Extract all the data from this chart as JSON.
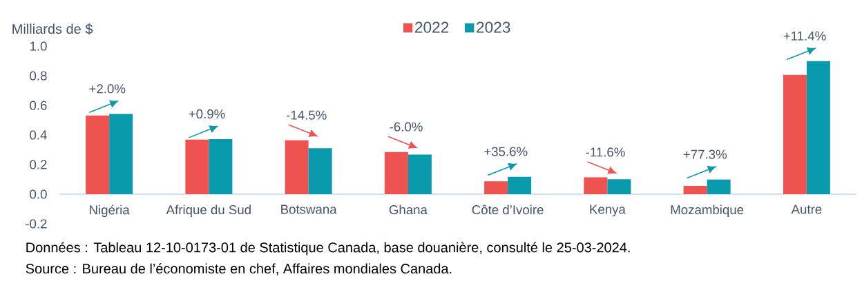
{
  "chart_data": {
    "type": "bar",
    "ylabel": "Milliards de $",
    "categories": [
      "Nigéria",
      "Afrique du Sud",
      "Botswana",
      "Ghana",
      "Côte d’Ivoire",
      "Kenya",
      "Mozambique",
      "Autre"
    ],
    "series": [
      {
        "name": "2022",
        "color": "#ef5350",
        "values": [
          0.531,
          0.369,
          0.364,
          0.285,
          0.087,
          0.114,
          0.056,
          0.806
        ]
      },
      {
        "name": "2023",
        "color": "#0a9aad",
        "values": [
          0.542,
          0.372,
          0.311,
          0.268,
          0.118,
          0.101,
          0.099,
          0.899
        ]
      }
    ],
    "ylim": [
      -0.2,
      1.0
    ],
    "yticks": [
      {
        "value": -0.2,
        "label": "-0.2"
      },
      {
        "value": 0,
        "label": "0.0"
      },
      {
        "value": 0.2,
        "label": "0.2"
      },
      {
        "value": 0.4,
        "label": "0.4"
      },
      {
        "value": 0.6,
        "label": "0.6"
      },
      {
        "value": 0.8,
        "label": "0.8"
      },
      {
        "value": 1.0,
        "label": "1.0"
      }
    ],
    "legend": "top",
    "annotations": [
      "+2.0%",
      "+0.9%",
      "-14.5%",
      "-6.0%",
      "+35.6%",
      "-11.6%",
      "+77.3%",
      "+11.4%",
      "Données : Tableau 12-10-0173-01 de Statistique Canada, base douanière, consulté le 25-03-2024.",
      "Source : Bureau de l’économiste en chef, Affaires mondiales Canada."
    ]
  }
}
